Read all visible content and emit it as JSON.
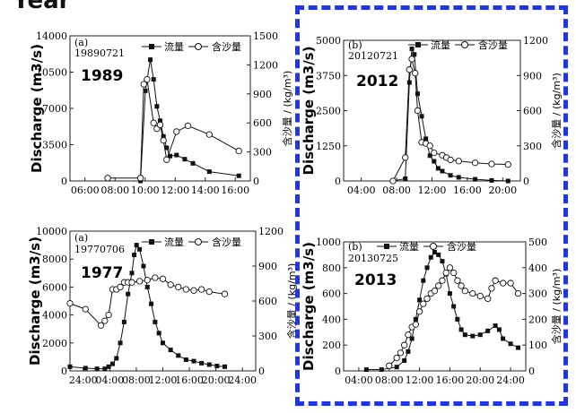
{
  "heading": "Year",
  "frame_color": "#1f35e6",
  "legend": {
    "discharge": "流量",
    "sediment": "含沙量"
  },
  "chart_data": [
    {
      "type": "line",
      "panel_label": "(a)",
      "event_code": "19890721",
      "year": "1989",
      "ylabel": "Discharge (m3/s)",
      "y2label": "含沙量 / (kg/m³)",
      "x_ticks": [
        "06:00",
        "08:00",
        "10:00",
        "12:00",
        "14:00",
        "16:00"
      ],
      "x_range_hours": [
        5.5,
        16.5
      ],
      "ylim": [
        0,
        14000
      ],
      "y_ticks": [
        "0",
        "3500",
        "7000",
        "10500",
        "14000"
      ],
      "y2lim": [
        0,
        1500
      ],
      "y2_ticks": [
        "0",
        "300",
        "600",
        "900",
        "1200",
        "1500"
      ],
      "series": [
        {
          "name": "流量",
          "axis": "left",
          "marker": "filled-square",
          "x": [
            9.8,
            10.1,
            10.4,
            10.6,
            10.8,
            11.0,
            11.2,
            11.4,
            11.6,
            12.0,
            12.5,
            13.0,
            14.0,
            15.8
          ],
          "y": [
            0,
            8700,
            11700,
            9800,
            7200,
            5800,
            4300,
            3200,
            2400,
            2500,
            2100,
            1700,
            900,
            500
          ]
        },
        {
          "name": "含沙量",
          "axis": "right",
          "marker": "open-circle",
          "x": [
            7.8,
            9.8,
            10.0,
            10.2,
            10.6,
            10.8,
            11.0,
            11.2,
            11.4,
            12.0,
            12.7,
            14.0,
            15.8
          ],
          "y": [
            30,
            30,
            1000,
            1050,
            600,
            540,
            580,
            420,
            220,
            510,
            570,
            480,
            310
          ]
        }
      ]
    },
    {
      "type": "line",
      "panel_label": "(b)",
      "event_code": "20120721",
      "year": "2012",
      "ylabel": "Discharge (m3/s)",
      "y2label": "含沙量 / (kg/m³)",
      "x_ticks": [
        "04:00",
        "08:00",
        "12:00",
        "16:00",
        "20:00"
      ],
      "x_range_hours": [
        2,
        23.5
      ],
      "ylim": [
        0,
        5000
      ],
      "y_ticks": [
        "0",
        "1250",
        "2500",
        "3750",
        "5000"
      ],
      "y2lim": [
        0,
        1200
      ],
      "y2_ticks": [
        "0",
        "300",
        "600",
        "900",
        "1200"
      ],
      "series": [
        {
          "name": "流量",
          "axis": "left",
          "marker": "filled-square",
          "x": [
            8.0,
            9.5,
            10.0,
            10.3,
            10.6,
            11.0,
            11.5,
            12.0,
            12.5,
            13.0,
            13.5,
            14.0,
            15.0,
            16.0,
            18.0,
            20.0,
            22.0
          ],
          "y": [
            0,
            80,
            3500,
            4700,
            4500,
            3100,
            2300,
            1500,
            900,
            700,
            450,
            350,
            200,
            130,
            60,
            20,
            0
          ]
        },
        {
          "name": "含沙量",
          "axis": "right",
          "marker": "open-circle",
          "x": [
            8.0,
            9.5,
            10.0,
            10.3,
            10.7,
            11.0,
            11.5,
            12.0,
            12.5,
            13.0,
            14.0,
            14.5,
            15.0,
            16.0,
            18.0,
            20.0,
            22.0
          ],
          "y": [
            0,
            200,
            950,
            1040,
            920,
            600,
            330,
            320,
            300,
            240,
            220,
            200,
            180,
            170,
            155,
            145,
            140
          ]
        }
      ]
    },
    {
      "type": "line",
      "panel_label": "(a)",
      "event_code": "19770706",
      "year": "1977",
      "ylabel": "Discharge (m3/s)",
      "y2label": "含沙量 / (kg/m³)",
      "x_ticks": [
        "24:00",
        "04:00",
        "08:00",
        "12:00",
        "16:00",
        "20:00",
        "24:00"
      ],
      "x_range_hours": [
        0,
        24
      ],
      "ylim": [
        0,
        10000
      ],
      "y_ticks": [
        "0",
        "2000",
        "4000",
        "6000",
        "8000",
        "10000"
      ],
      "y2lim": [
        0,
        1200
      ],
      "y2_ticks": [
        "0",
        "300",
        "600",
        "900",
        "1200"
      ],
      "series": [
        {
          "name": "流量",
          "axis": "left",
          "marker": "filled-square",
          "x": [
            0,
            2,
            3.5,
            4.5,
            5,
            5.5,
            6,
            6.5,
            7,
            7.5,
            8,
            8.3,
            8.6,
            9,
            9.5,
            10,
            10.5,
            11,
            11.5,
            12,
            13,
            14,
            15,
            16,
            17,
            18,
            19,
            20
          ],
          "y": [
            300,
            200,
            150,
            150,
            300,
            500,
            900,
            2000,
            3500,
            5500,
            7000,
            8300,
            9000,
            8700,
            7500,
            6000,
            4800,
            3500,
            2700,
            2000,
            1500,
            1100,
            800,
            700,
            550,
            450,
            350,
            300
          ]
        },
        {
          "name": "含沙量",
          "axis": "right",
          "marker": "open-circle",
          "x": [
            0,
            2,
            4,
            4.5,
            5,
            5.5,
            6,
            6.5,
            7,
            7.5,
            8,
            9,
            10,
            11,
            12,
            13,
            14,
            15,
            16,
            17,
            18,
            20
          ],
          "y": [
            580,
            530,
            390,
            430,
            480,
            700,
            700,
            720,
            760,
            760,
            760,
            770,
            780,
            800,
            790,
            740,
            720,
            700,
            690,
            700,
            680,
            660
          ]
        }
      ]
    },
    {
      "type": "line",
      "panel_label": "(b)",
      "event_code": "20130725",
      "year": "2013",
      "ylabel": "Discharge (m3/s)",
      "y2label": "含沙量 / (kg/m³)",
      "x_ticks": [
        "04:00",
        "08:00",
        "12:00",
        "16:00",
        "20:00",
        "24:00"
      ],
      "x_range_hours": [
        0,
        24
      ],
      "ylim": [
        0,
        1000
      ],
      "y_ticks": [
        "0",
        "200",
        "400",
        "600",
        "800",
        "1000"
      ],
      "y2lim": [
        0,
        500
      ],
      "y2_ticks": [
        "0",
        "100",
        "200",
        "300",
        "400",
        "500"
      ],
      "series": [
        {
          "name": "流量",
          "axis": "left",
          "marker": "filled-square",
          "x": [
            3,
            5,
            7,
            8,
            8.5,
            9,
            9.5,
            10,
            10.5,
            11,
            11.5,
            12,
            12.5,
            13,
            13.5,
            14,
            14.5,
            15,
            15.5,
            16,
            17,
            18,
            19,
            20,
            20.5,
            21,
            22,
            23
          ],
          "y": [
            10,
            10,
            30,
            80,
            150,
            250,
            400,
            550,
            700,
            800,
            880,
            920,
            900,
            850,
            750,
            600,
            500,
            400,
            320,
            280,
            270,
            280,
            310,
            350,
            320,
            250,
            210,
            180
          ]
        },
        {
          "name": "含沙量",
          "axis": "right",
          "marker": "open-circle",
          "x": [
            6,
            7,
            7.5,
            8,
            8.5,
            9,
            9.5,
            10,
            10.5,
            11,
            11.5,
            12,
            12.5,
            13,
            13.5,
            14,
            14.5,
            15,
            15.5,
            16,
            17,
            18,
            19,
            19.5,
            20,
            21,
            22,
            23
          ],
          "y": [
            20,
            50,
            70,
            100,
            140,
            170,
            180,
            230,
            260,
            280,
            300,
            310,
            330,
            350,
            380,
            400,
            380,
            350,
            330,
            310,
            300,
            290,
            280,
            320,
            350,
            340,
            340,
            300
          ]
        }
      ]
    }
  ]
}
